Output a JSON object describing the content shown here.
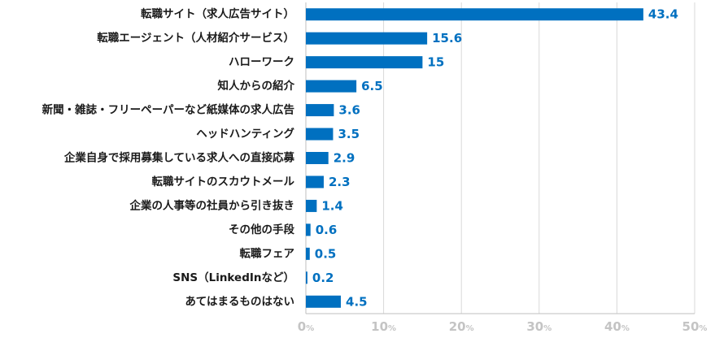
{
  "chart_data": {
    "type": "bar",
    "orientation": "horizontal",
    "categories": [
      "転職サイト（求人広告サイト）",
      "転職エージェント（人材紹介サービス）",
      "ハローワーク",
      "知人からの紹介",
      "新聞・雑誌・フリーペーパーなど紙媒体の求人広告",
      "ヘッドハンティング",
      "企業自身で採用募集している求人への直接応募",
      "転職サイトのスカウトメール",
      "企業の人事等の社員から引き抜き",
      "その他の手段",
      "転職フェア",
      "SNS（LinkedInなど）",
      "あてはまるものはない"
    ],
    "values": [
      43.4,
      15.6,
      15,
      6.5,
      3.6,
      3.5,
      2.9,
      2.3,
      1.4,
      0.6,
      0.5,
      0.2,
      4.5
    ],
    "value_labels": [
      "43.4",
      "15.6",
      "15",
      "6.5",
      "3.6",
      "3.5",
      "2.9",
      "2.3",
      "1.4",
      "0.6",
      "0.5",
      "0.2",
      "4.5"
    ],
    "xlim": [
      0,
      50
    ],
    "x_ticks": [
      0,
      10,
      20,
      30,
      40,
      50
    ],
    "tick_suffix": "%",
    "grid": true,
    "title": "",
    "xlabel": "",
    "ylabel": "",
    "colors": {
      "bar": "#0070c0",
      "label": "#0070c0",
      "grid": "#d9d9d9",
      "axis": "#bfbfbf",
      "tick": "#c4c4c4",
      "text": "#1a1a1a"
    }
  }
}
